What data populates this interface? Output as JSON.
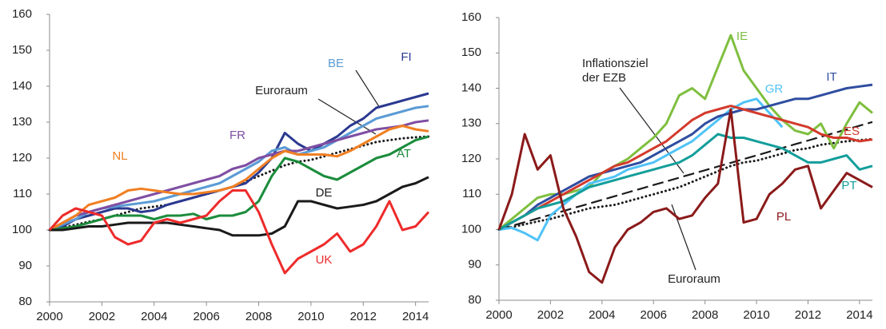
{
  "chart_data": [
    {
      "type": "line",
      "xlim": [
        2000,
        2014.5
      ],
      "ylim": [
        80,
        160
      ],
      "xticks": [
        2000,
        2002,
        2004,
        2006,
        2008,
        2010,
        2012,
        2014
      ],
      "yticks": [
        80,
        90,
        100,
        110,
        120,
        130,
        140,
        150,
        160
      ],
      "x": [
        2000,
        2000.5,
        2001,
        2001.5,
        2002,
        2002.5,
        2003,
        2003.5,
        2004,
        2004.5,
        2005,
        2005.5,
        2006,
        2006.5,
        2007,
        2007.5,
        2008,
        2008.5,
        2009,
        2009.5,
        2010,
        2010.5,
        2011,
        2011.5,
        2012,
        2012.5,
        2013,
        2013.5,
        2014,
        2014.5
      ],
      "series": [
        {
          "name": "Euroraum",
          "color": "#1a1a1a",
          "dash": "dotted",
          "values": [
            100,
            100.7,
            101.5,
            102.3,
            103,
            104,
            105,
            106,
            106.5,
            107,
            108,
            109,
            110,
            111,
            112,
            113.5,
            115,
            116.5,
            118,
            119,
            119.5,
            120.5,
            121.5,
            122.5,
            123.5,
            124.5,
            125,
            125.5,
            125.8,
            126
          ]
        },
        {
          "name": "FI",
          "color": "#2b3990",
          "values": [
            100,
            101,
            103,
            104,
            105,
            106,
            106,
            105,
            105.5,
            107,
            108,
            109,
            110,
            111,
            112,
            113,
            116,
            120,
            127,
            124,
            122,
            124,
            126,
            129,
            131,
            134,
            135,
            136,
            137,
            138
          ]
        },
        {
          "name": "BE",
          "color": "#5b9bd5",
          "values": [
            100,
            101.5,
            103,
            105,
            106,
            106.5,
            107,
            107.5,
            108,
            109,
            110,
            111,
            112,
            113,
            115,
            117,
            119,
            122,
            123,
            121,
            122,
            123,
            125,
            127,
            129,
            131,
            132,
            133,
            134,
            134.5
          ]
        },
        {
          "name": "FR",
          "color": "#7f4ea3",
          "values": [
            100,
            102,
            104,
            105,
            106,
            107,
            108,
            109,
            110,
            111,
            112,
            113,
            114,
            115,
            117,
            118,
            120,
            121,
            122,
            122,
            123,
            124,
            125,
            126,
            127,
            128,
            128.5,
            129,
            130,
            130.5
          ]
        },
        {
          "name": "NL",
          "color": "#f07f22",
          "values": [
            100,
            102,
            104,
            107,
            108,
            109,
            111,
            111.5,
            111,
            110.5,
            110,
            110,
            110.5,
            111,
            112,
            114,
            117,
            120,
            122,
            121,
            121,
            121,
            120.5,
            122,
            124,
            126,
            128,
            129,
            128,
            127.5
          ]
        },
        {
          "name": "AT",
          "color": "#1b8c3c",
          "values": [
            100,
            100.5,
            101,
            102,
            103,
            104,
            104,
            104,
            103,
            104,
            104,
            104.5,
            103,
            104,
            104,
            105,
            108,
            115,
            120,
            119,
            117,
            115,
            114,
            116,
            118,
            120,
            121,
            123,
            125,
            126
          ]
        },
        {
          "name": "DE",
          "color": "#1a1a1a",
          "values": [
            100,
            100,
            100.5,
            101,
            101,
            101.5,
            102,
            102,
            102,
            102,
            101.5,
            101,
            100.5,
            100,
            98.5,
            98.5,
            98.5,
            99,
            101,
            108,
            108,
            107,
            106,
            106.5,
            107,
            108,
            110,
            112,
            113,
            114.7
          ]
        },
        {
          "name": "UK",
          "color": "#ee2b2b",
          "values": [
            100,
            104,
            106,
            105,
            104,
            98,
            96,
            97,
            102,
            103,
            102,
            103,
            104,
            108,
            111,
            111,
            105,
            96,
            88,
            92,
            94,
            96,
            99,
            94,
            96,
            101,
            108,
            100,
            101,
            105
          ]
        }
      ]
    },
    {
      "type": "line",
      "xlim": [
        2000,
        2014.5
      ],
      "ylim": [
        80,
        160
      ],
      "xticks": [
        2000,
        2002,
        2004,
        2006,
        2008,
        2010,
        2012,
        2014
      ],
      "yticks": [
        80,
        90,
        100,
        110,
        120,
        130,
        140,
        150,
        160
      ],
      "annotations": [
        "Inflationsziel",
        "der EZB"
      ],
      "x": [
        2000,
        2000.5,
        2001,
        2001.5,
        2002,
        2002.5,
        2003,
        2003.5,
        2004,
        2004.5,
        2005,
        2005.5,
        2006,
        2006.5,
        2007,
        2007.5,
        2008,
        2008.5,
        2009,
        2009.5,
        2010,
        2010.5,
        2011,
        2011.5,
        2012,
        2012.5,
        2013,
        2013.5,
        2014,
        2014.5
      ],
      "series": [
        {
          "name": "Euroraum",
          "color": "#1a1a1a",
          "dash": "dotted",
          "values": [
            100,
            100.7,
            101.5,
            102.3,
            103,
            104,
            105,
            106,
            106.5,
            107,
            108,
            109,
            110,
            111,
            112,
            113.5,
            115,
            116.5,
            118,
            119,
            119.5,
            120.5,
            121.5,
            122.5,
            123,
            124,
            124.5,
            125,
            125.3,
            125.6
          ]
        },
        {
          "color": "#1a1a1a",
          "dash": "dashed",
          "values": [
            100,
            101.05,
            102.1,
            103.15,
            104.2,
            105.25,
            106.3,
            107.35,
            108.4,
            109.45,
            110.5,
            111.55,
            112.6,
            113.65,
            114.7,
            115.75,
            116.8,
            117.85,
            118.9,
            119.95,
            121,
            122.05,
            123.1,
            124.15,
            125.2,
            126.25,
            127.3,
            128.35,
            129.4,
            130.45
          ]
        },
        {
          "name": "IE",
          "color": "#7fbf3f",
          "values": [
            100,
            103,
            106,
            109,
            110,
            110,
            111,
            112,
            116,
            118,
            120,
            123,
            126,
            130,
            138,
            140,
            137,
            146,
            155,
            145,
            140,
            135,
            131,
            128,
            127,
            130,
            123,
            130,
            136,
            133
          ]
        },
        {
          "name": "GR",
          "color": "#4fc3f7",
          "values": [
            100,
            100.5,
            99,
            97,
            104,
            107,
            110,
            113,
            114,
            115,
            117,
            118,
            119,
            121,
            123,
            125,
            128,
            131,
            134,
            136,
            137,
            133,
            129,
            null,
            null,
            null,
            null,
            null,
            null,
            null
          ]
        },
        {
          "name": "IT",
          "color": "#2f4da0",
          "values": [
            100,
            102,
            104,
            107,
            109,
            111,
            113,
            115,
            116,
            117,
            118,
            119,
            121,
            123,
            125,
            127,
            130,
            132,
            133,
            134,
            134,
            135,
            136,
            137,
            137,
            138,
            139,
            140,
            140.5,
            141
          ]
        },
        {
          "name": "ES",
          "color": "#d33a2c",
          "values": [
            100,
            102,
            104,
            106,
            108,
            110,
            112,
            114,
            116,
            118,
            119,
            121,
            123,
            125,
            128,
            131,
            133,
            134,
            135,
            134,
            133,
            132,
            131,
            130,
            129,
            127,
            126,
            126,
            125,
            125.5
          ]
        },
        {
          "name": "PT",
          "color": "#139e9b",
          "values": [
            100,
            102,
            104,
            106,
            107,
            108,
            110,
            112,
            113,
            114,
            115,
            116,
            117,
            118,
            119,
            121,
            124,
            127,
            126,
            126,
            125,
            124,
            123,
            121,
            119,
            119,
            120,
            121,
            117,
            118
          ]
        },
        {
          "name": "PL",
          "color": "#8b1a1a",
          "values": [
            100,
            110,
            127,
            117,
            121,
            106,
            98,
            88,
            85,
            95,
            100,
            102,
            105,
            106,
            103,
            104,
            109,
            113,
            134,
            102,
            103,
            110,
            113,
            117,
            118,
            106,
            111,
            116,
            114,
            112
          ]
        }
      ]
    }
  ]
}
